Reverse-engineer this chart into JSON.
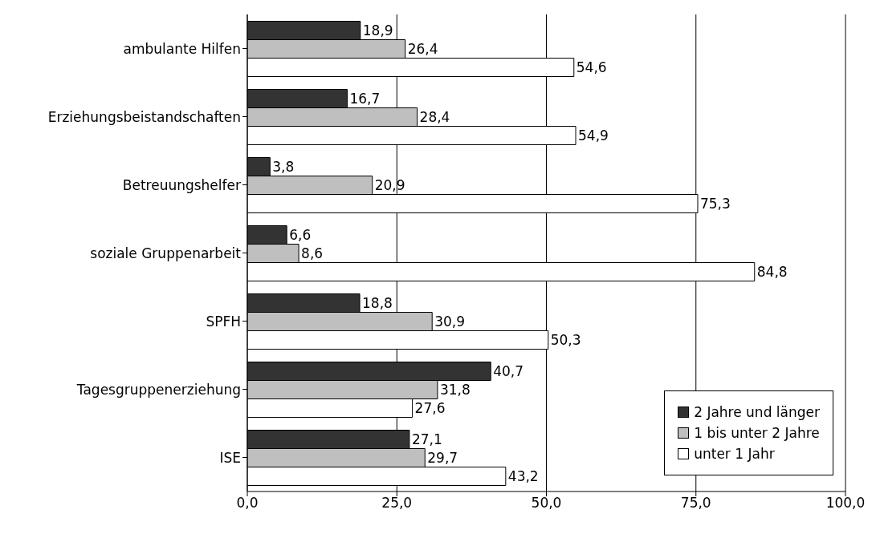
{
  "chart_data": {
    "type": "bar",
    "orientation": "horizontal",
    "categories": [
      "ambulante Hilfen",
      "Erziehungsbeistandschaften",
      "Betreuungshelfer",
      "soziale Gruppenarbeit",
      "SPFH",
      "Tagesgruppenerziehung",
      "ISE"
    ],
    "series": [
      {
        "name": "2 Jahre und länger",
        "color": "#333333",
        "values": [
          18.9,
          16.7,
          3.8,
          6.6,
          18.8,
          40.7,
          27.1
        ],
        "value_labels": [
          "18,9",
          "16,7",
          "3,8",
          "6,6",
          "18,8",
          "40,7",
          "27,1"
        ]
      },
      {
        "name": "1 bis unter 2 Jahre",
        "color": "#bfbfbf",
        "values": [
          26.4,
          28.4,
          20.9,
          8.6,
          30.9,
          31.8,
          29.7
        ],
        "value_labels": [
          "26,4",
          "28,4",
          "20,9",
          "8,6",
          "30,9",
          "31,8",
          "29,7"
        ]
      },
      {
        "name": "unter 1 Jahr",
        "color": "#ffffff",
        "values": [
          54.6,
          54.9,
          75.3,
          84.8,
          50.3,
          27.6,
          43.2
        ],
        "value_labels": [
          "54,6",
          "54,9",
          "75,3",
          "84,8",
          "50,3",
          "27,6",
          "43,2"
        ]
      }
    ],
    "xlim": [
      0,
      100
    ],
    "xticks": [
      {
        "value": 0,
        "label": "0,0"
      },
      {
        "value": 25,
        "label": "25,0"
      },
      {
        "value": 50,
        "label": "50,0"
      },
      {
        "value": 75,
        "label": "75,0"
      },
      {
        "value": 100,
        "label": "100,0"
      }
    ],
    "grid": "x",
    "legend": "bottom right"
  }
}
